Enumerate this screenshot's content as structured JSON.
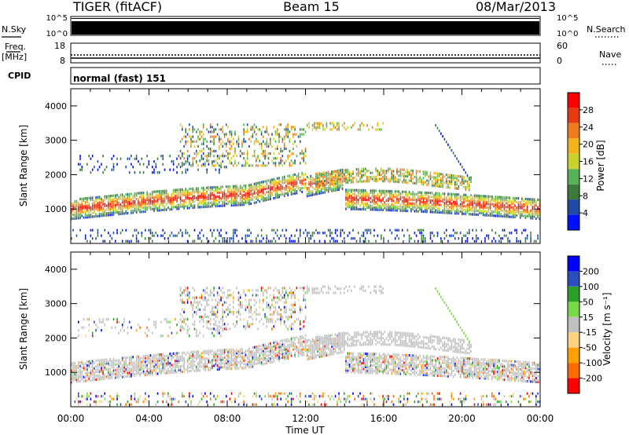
{
  "header": {
    "station": "TIGER (fitACF)",
    "beam": "Beam 15",
    "date": "08/Mar/2013"
  },
  "strip": {
    "nsky_label": "N.Sky",
    "nsky_ticks": [
      "10^5",
      "10^0"
    ],
    "nsearch_label": "N.Search",
    "nsearch_ticks": [
      "10^5",
      "10^0"
    ],
    "freq_label": "Freq.",
    "freq_unit": "[MHz]",
    "freq_ticks": [
      "18",
      "8"
    ],
    "nave_label": "Nave",
    "nave_ticks": [
      "60",
      "0"
    ],
    "cpid_label": "CPID",
    "cpid_text": "normal (fast) 151"
  },
  "colors": {
    "ground_scatter": "#c0c0c0",
    "power_scale": [
      "#0010ff",
      "#1f4aa6",
      "#3c7a3c",
      "#58b058",
      "#c8d22a",
      "#f0b418",
      "#f07a1c",
      "#e83a10",
      "#ff0000"
    ],
    "velocity_scale": [
      "#ff0000",
      "#ff6a00",
      "#ffa000",
      "#ffd080",
      "#c0c0c0",
      "#78d848",
      "#2aa02a",
      "#2a4ec0",
      "#0000ff"
    ]
  },
  "chart_data": [
    {
      "type": "heatmap",
      "name": "Power",
      "xlabel": "Time UT",
      "ylabel": "Slant Range [km]",
      "x_ticks": [
        "00:00",
        "04:00",
        "08:00",
        "12:00",
        "16:00",
        "20:00",
        "00:00"
      ],
      "y_ticks": [
        1000,
        2000,
        3000,
        4000
      ],
      "ylim": [
        0,
        4500
      ],
      "colorbar": {
        "label": "Power [dB]",
        "ticks": [
          4,
          8,
          12,
          16,
          20,
          24,
          28
        ]
      },
      "echo_bands": [
        {
          "from_h": 0,
          "to_h": 24,
          "range_km": [
            750,
            1550
          ],
          "level": "high"
        },
        {
          "from_h": 5,
          "to_h": 12,
          "range_km": [
            2400,
            3500
          ],
          "level": "mid"
        },
        {
          "from_h": 14,
          "to_h": 20,
          "range_km": [
            1600,
            2300
          ],
          "level": "mid"
        }
      ]
    },
    {
      "type": "heatmap",
      "name": "Velocity",
      "xlabel": "Time UT",
      "ylabel": "Slant Range [km]",
      "x_ticks": [
        "00:00",
        "04:00",
        "08:00",
        "12:00",
        "16:00",
        "20:00",
        "00:00"
      ],
      "y_ticks": [
        1000,
        2000,
        3000,
        4000
      ],
      "ylim": [
        0,
        4500
      ],
      "colorbar": {
        "label": "Velocity [m s⁻¹]",
        "ticks": [
          -200,
          -100,
          -50,
          -15,
          15,
          50,
          100,
          200
        ]
      }
    }
  ]
}
